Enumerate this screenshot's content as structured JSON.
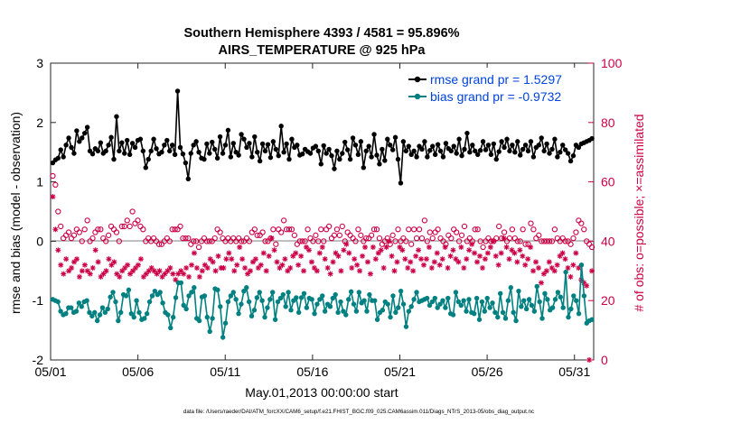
{
  "chart_data": {
    "type": "line",
    "title_line1": "Southern Hemisphere 4393 / 4581 = 95.896%",
    "title_line2": "AIRS_TEMPERATURE @ 925 hPa",
    "xlabel": "May.01,2013 00:00:00 start",
    "ylabel_left": "rmse and bias (model - observation)",
    "ylabel_right": "# of obs: o=possible; ×=assimilated",
    "footer": "data file: /Users/raeder/DAI/ATM_forcXX/CAM6_setup/f.e21.FHIST_BGC.f09_025.CAM6assim.011/Diags_NTrS_2013-05/obs_diag_output.nc",
    "x_range_days": [
      0,
      31.1
    ],
    "x_ticks": [
      {
        "day": 0,
        "label": "05/01"
      },
      {
        "day": 5,
        "label": "05/06"
      },
      {
        "day": 10,
        "label": "05/11"
      },
      {
        "day": 15,
        "label": "05/16"
      },
      {
        "day": 20,
        "label": "05/21"
      },
      {
        "day": 25,
        "label": "05/26"
      },
      {
        "day": 30,
        "label": "05/31"
      }
    ],
    "ylim_left": [
      -2,
      3
    ],
    "y_ticks_left": [
      -2,
      -1,
      0,
      1,
      2,
      3
    ],
    "ylim_right": [
      0,
      100
    ],
    "y_ticks_right": [
      0,
      20,
      40,
      60,
      80,
      100
    ],
    "zero_line": true,
    "legend": {
      "position": "top-right",
      "entries": [
        {
          "label": "rmse grand pr = 1.5297",
          "series": "rmse"
        },
        {
          "label": "bias grand pr = -0.9732",
          "series": "bias"
        }
      ]
    },
    "colors": {
      "rmse": "#000000",
      "bias": "#008080",
      "obs": "#cc0044",
      "legend_text": "#0044dd",
      "zero_line": "#aaaaaa"
    },
    "series": [
      {
        "name": "rmse",
        "values": [
          1.32,
          1.37,
          1.4,
          1.54,
          1.42,
          1.62,
          1.74,
          1.58,
          1.48,
          1.86,
          1.68,
          1.74,
          1.82,
          1.92,
          1.52,
          1.47,
          1.56,
          1.52,
          1.66,
          1.48,
          1.52,
          1.62,
          1.75,
          1.38,
          2.1,
          1.52,
          1.66,
          1.48,
          1.7,
          1.46,
          1.65,
          1.58,
          1.7,
          1.72,
          1.52,
          1.24,
          1.38,
          1.52,
          1.72,
          1.56,
          1.47,
          1.5,
          1.62,
          1.7,
          1.52,
          1.62,
          1.46,
          2.53,
          1.58,
          1.47,
          1.32,
          1.05,
          1.48,
          1.62,
          1.68,
          1.5,
          1.4,
          1.38,
          1.64,
          1.48,
          1.67,
          1.55,
          1.4,
          1.76,
          1.48,
          1.62,
          1.87,
          1.42,
          1.65,
          1.5,
          1.45,
          1.8,
          1.72,
          1.58,
          1.65,
          1.42,
          1.76,
          1.5,
          1.35,
          1.64,
          1.52,
          1.63,
          1.41,
          1.68,
          1.55,
          1.44,
          1.94,
          1.5,
          1.64,
          1.38,
          1.72,
          1.58,
          1.62,
          1.45,
          1.47,
          1.55,
          1.51,
          1.48,
          1.57,
          1.6,
          1.52,
          1.3,
          1.61,
          1.48,
          1.55,
          1.44,
          1.22,
          1.52,
          1.38,
          1.48,
          1.67,
          1.54,
          1.38,
          1.74,
          1.62,
          1.46,
          1.68,
          1.24,
          1.52,
          1.6,
          1.42,
          1.8,
          1.45,
          1.3,
          1.55,
          1.36,
          1.72,
          1.62,
          1.54,
          1.75,
          1.38,
          0.98,
          1.68,
          1.52,
          1.6,
          1.46,
          1.52,
          1.42,
          1.6,
          1.55,
          1.68,
          1.42,
          1.53,
          1.6,
          1.46,
          1.63,
          1.52,
          1.42,
          1.65,
          1.56,
          1.52,
          1.6,
          1.48,
          1.72,
          1.44,
          1.55,
          1.82,
          1.5,
          1.62,
          1.52,
          1.46,
          1.53,
          1.68,
          1.54,
          1.62,
          1.46,
          1.64,
          1.38,
          1.51,
          1.68,
          1.58,
          1.72,
          1.52,
          1.62,
          1.5,
          1.68,
          1.45,
          1.55,
          1.62,
          1.52,
          1.68,
          1.42,
          1.58,
          1.62,
          1.74,
          1.52,
          1.64,
          1.48,
          1.55,
          1.72,
          1.42,
          1.5,
          1.62,
          1.54,
          1.48,
          1.35,
          1.44,
          1.62,
          1.58,
          1.64,
          1.66,
          1.68,
          1.7,
          1.73
        ]
      },
      {
        "name": "bias",
        "values": [
          -0.98,
          -1.0,
          -1.02,
          -1.18,
          -1.24,
          -1.22,
          -1.12,
          -1.12,
          -1.2,
          -1.18,
          -1.04,
          -1.1,
          -1.02,
          -1.0,
          -1.2,
          -1.26,
          -1.2,
          -1.34,
          -1.24,
          -1.12,
          -1.2,
          -1.14,
          -0.94,
          -0.86,
          -1.02,
          -1.34,
          -1.2,
          -0.9,
          -0.92,
          -0.82,
          -1.22,
          -1.28,
          -1.0,
          -1.2,
          -1.32,
          -1.3,
          -1.22,
          -1.02,
          -0.92,
          -0.84,
          -0.9,
          -0.86,
          -1.04,
          -1.2,
          -1.24,
          -1.46,
          -1.28,
          -0.95,
          -0.7,
          -0.7,
          -1.08,
          -1.14,
          -0.92,
          -0.86,
          -0.78,
          -1.3,
          -1.34,
          -0.94,
          -0.92,
          -1.28,
          -1.52,
          -1.3,
          -0.8,
          -0.82,
          -1.1,
          -1.62,
          -1.38,
          -1.02,
          -0.92,
          -0.86,
          -0.98,
          -1.22,
          -1.06,
          -0.84,
          -0.78,
          -1.02,
          -1.26,
          -1.16,
          -0.95,
          -0.86,
          -1.0,
          -1.28,
          -1.12,
          -0.98,
          -0.86,
          -1.32,
          -1.02,
          -0.96,
          -0.9,
          -1.1,
          -0.86,
          -1.16,
          -1.0,
          -0.95,
          -1.2,
          -0.95,
          -0.88,
          -1.12,
          -0.96,
          -0.98,
          -1.22,
          -1.06,
          -0.98,
          -0.92,
          -1.18,
          -1.06,
          -1.1,
          -0.96,
          -0.9,
          -1.2,
          -1.02,
          -1.18,
          -1.24,
          -0.98,
          -0.85,
          -1.06,
          -1.18,
          -0.86,
          -1.04,
          -1.0,
          -1.18,
          -0.9,
          -1.0,
          -1.0,
          -1.32,
          -1.2,
          -1.16,
          -1.02,
          -1.06,
          -1.28,
          -0.92,
          -1.2,
          -1.12,
          -0.84,
          -1.06,
          -1.44,
          -1.18,
          -1.1,
          -0.98,
          -0.86,
          -1.02,
          -1.0,
          -0.98,
          -0.96,
          -1.08,
          -1.02,
          -0.96,
          -1.12,
          -1.06,
          -1.0,
          -1.12,
          -0.96,
          -1.22,
          -1.24,
          -0.86,
          -1.02,
          -1.08,
          -1.0,
          -1.18,
          -0.98,
          -1.2,
          -1.22,
          -0.96,
          -1.32,
          -1.02,
          -1.18,
          -0.96,
          -1.12,
          -1.04,
          -1.2,
          -1.28,
          -0.88,
          -1.2,
          -1.3,
          -1.0,
          -0.78,
          -1.2,
          -1.34,
          -0.84,
          -1.1,
          -1.0,
          -1.14,
          -0.98,
          -1.08,
          -1.18,
          -0.76,
          -1.02,
          -1.3,
          -0.88,
          -0.98,
          -1.16,
          -1.12,
          -0.98,
          -0.86,
          -0.94,
          -1.12,
          -0.52,
          -1.28,
          -1.14,
          -0.92,
          -1.0,
          -1.22,
          -0.4,
          -0.92,
          -1.38,
          -1.34,
          -1.32
        ]
      },
      {
        "name": "obs_possible",
        "values": [
          62,
          59,
          50,
          45,
          41,
          42,
          43,
          41,
          42,
          44,
          43,
          40,
          44,
          47,
          40,
          41,
          43,
          44,
          44,
          41,
          40,
          42,
          45,
          44,
          43,
          40,
          45,
          45,
          47,
          45,
          50,
          46,
          47,
          45,
          44,
          40,
          41,
          40,
          41,
          40,
          39,
          39,
          40,
          41,
          40,
          44,
          44,
          44,
          45,
          41,
          41,
          41,
          39,
          40,
          40,
          38,
          40,
          41,
          40,
          40,
          40,
          41,
          44,
          43,
          41,
          40,
          41,
          40,
          41,
          40,
          41,
          40,
          40,
          41,
          40,
          43,
          44,
          42,
          42,
          43,
          40,
          40,
          41,
          44,
          39,
          44,
          43,
          47,
          44,
          44,
          44,
          42,
          39,
          40,
          40,
          40,
          44,
          41,
          40,
          42,
          40,
          44,
          40,
          44,
          45,
          41,
          42,
          44,
          42,
          45,
          40,
          43,
          42,
          41,
          40,
          44,
          42,
          40,
          41,
          41,
          42,
          44,
          44,
          41,
          39,
          40,
          41,
          39,
          42,
          40,
          44,
          40,
          41,
          40,
          44,
          39,
          44,
          41,
          44,
          41,
          47,
          40,
          43,
          41,
          43,
          44,
          41,
          40,
          39,
          42,
          41,
          44,
          43,
          40,
          42,
          45,
          40,
          41,
          40,
          44,
          44,
          40,
          38,
          40,
          41,
          40,
          40,
          41,
          45,
          41,
          43,
          40,
          41,
          44,
          41,
          40,
          40,
          44,
          39,
          39,
          46,
          44,
          41,
          42,
          40,
          40,
          40,
          40,
          40,
          44,
          41,
          40,
          41,
          40,
          40,
          39,
          41,
          43,
          47,
          46,
          44,
          40,
          39,
          38
        ]
      },
      {
        "name": "obs_assimilated",
        "values": [
          55,
          44,
          37,
          32,
          29,
          34,
          30,
          31,
          33,
          34,
          28,
          30,
          32,
          30,
          29,
          31,
          37,
          33,
          28,
          29,
          30,
          34,
          32,
          33,
          29,
          28,
          30,
          31,
          32,
          29,
          30,
          31,
          32,
          34,
          28,
          29,
          30,
          31,
          30,
          29,
          30,
          28,
          29,
          30,
          31,
          29,
          27,
          29,
          30,
          29,
          31,
          28,
          32,
          36,
          31,
          28,
          30,
          32,
          31,
          34,
          33,
          30,
          35,
          31,
          31,
          34,
          36,
          34,
          30,
          32,
          38,
          34,
          31,
          29,
          30,
          33,
          34,
          31,
          32,
          36,
          30,
          35,
          41,
          37,
          33,
          31,
          32,
          34,
          30,
          31,
          35,
          36,
          32,
          35,
          30,
          38,
          37,
          33,
          31,
          30,
          36,
          38,
          34,
          31,
          29,
          33,
          36,
          35,
          30,
          37,
          39,
          36,
          31,
          34,
          32,
          30,
          35,
          38,
          33,
          29,
          38,
          34,
          36,
          37,
          31,
          38,
          40,
          35,
          30,
          33,
          38,
          37,
          34,
          31,
          33,
          30,
          35,
          37,
          34,
          32,
          34,
          38,
          31,
          33,
          36,
          32,
          34,
          38,
          31,
          35,
          37,
          34,
          33,
          38,
          31,
          34,
          37,
          39,
          36,
          33,
          35,
          31,
          34,
          36,
          38,
          40,
          35,
          32,
          36,
          41,
          38,
          34,
          37,
          36,
          33,
          37,
          35,
          32,
          34,
          38,
          30,
          33,
          31,
          26,
          29,
          30,
          33,
          31,
          30,
          32,
          35,
          36,
          34,
          31,
          28,
          32,
          36,
          31,
          27,
          26,
          25,
          0,
          30
        ]
      }
    ]
  }
}
